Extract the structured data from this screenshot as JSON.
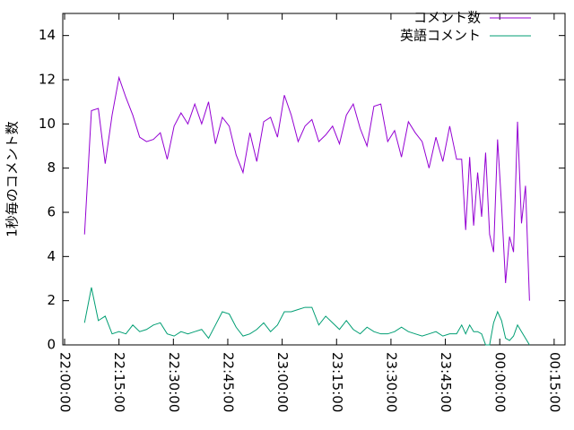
{
  "chart_data": {
    "type": "line",
    "y_label": "1秒毎のコメント数",
    "legend": "top-right",
    "xlim": [
      -0.5,
      138
    ],
    "ylim": [
      0,
      15
    ],
    "xticks": [
      {
        "value": 0,
        "label": "22:00:00"
      },
      {
        "value": 15,
        "label": "22:15:00"
      },
      {
        "value": 30,
        "label": "22:30:00"
      },
      {
        "value": 45,
        "label": "22:45:00"
      },
      {
        "value": 60,
        "label": "23:00:00"
      },
      {
        "value": 75,
        "label": "23:15:00"
      },
      {
        "value": 90,
        "label": "23:30:00"
      },
      {
        "value": 105,
        "label": "23:45:00"
      },
      {
        "value": 120,
        "label": "00:00:00"
      },
      {
        "value": 135,
        "label": "00:15:00"
      }
    ],
    "yticks": [
      0,
      2,
      4,
      6,
      8,
      10,
      12,
      14
    ],
    "x": [
      5.5,
      7.4,
      9.3,
      11.2,
      13.1,
      15,
      16.9,
      18.8,
      20.7,
      22.6,
      24.5,
      26.4,
      28.3,
      30.2,
      32.1,
      34,
      35.9,
      37.8,
      39.7,
      41.6,
      43.5,
      45.4,
      47.3,
      49.2,
      51.1,
      53,
      54.9,
      56.8,
      58.7,
      60.6,
      62.5,
      64.4,
      66.3,
      68.2,
      70.1,
      72,
      73.9,
      75.8,
      77.7,
      79.6,
      81.5,
      83.4,
      85.3,
      87.2,
      89.1,
      91,
      92.9,
      94.8,
      96.7,
      98.6,
      100.5,
      102.4,
      104.3,
      106.2,
      108.1,
      109.5,
      110.6,
      111.7,
      112.8,
      113.9,
      115,
      116.1,
      117.2,
      118.3,
      119.4,
      120.5,
      121.6,
      122.7,
      123.8,
      124.9,
      126,
      127.1,
      128.2
    ],
    "series": [
      {
        "name": "コメント数",
        "color": "#9400d3",
        "values": [
          5.0,
          10.6,
          10.7,
          8.2,
          10.4,
          12.1,
          11.2,
          10.4,
          9.4,
          9.2,
          9.3,
          9.6,
          8.4,
          9.9,
          10.5,
          10.0,
          10.9,
          10.0,
          11.0,
          9.1,
          10.3,
          9.9,
          8.6,
          7.8,
          9.6,
          8.3,
          10.1,
          10.3,
          9.4,
          11.3,
          10.4,
          9.2,
          9.9,
          10.2,
          9.2,
          9.5,
          9.9,
          9.1,
          10.4,
          10.9,
          9.8,
          9.0,
          10.8,
          10.9,
          9.2,
          9.7,
          8.5,
          10.1,
          9.6,
          9.2,
          8.0,
          9.4,
          8.3,
          9.9,
          8.4,
          8.4,
          5.2,
          8.5,
          5.4,
          7.8,
          5.8,
          8.7,
          5.0,
          4.2,
          9.3,
          6.3,
          2.8,
          4.9,
          4.2,
          10.1,
          5.5,
          7.2,
          2.0
        ]
      },
      {
        "name": "英語コメント",
        "color": "#009e73",
        "values": [
          1.0,
          2.6,
          1.1,
          1.3,
          0.5,
          0.6,
          0.5,
          0.9,
          0.6,
          0.7,
          0.9,
          1.0,
          0.5,
          0.4,
          0.6,
          0.5,
          0.6,
          0.7,
          0.3,
          0.9,
          1.5,
          1.4,
          0.8,
          0.4,
          0.5,
          0.7,
          1.0,
          0.6,
          0.9,
          1.5,
          1.5,
          1.6,
          1.7,
          1.7,
          0.9,
          1.3,
          1.0,
          0.7,
          1.1,
          0.7,
          0.5,
          0.8,
          0.6,
          0.5,
          0.5,
          0.6,
          0.8,
          0.6,
          0.5,
          0.4,
          0.5,
          0.6,
          0.4,
          0.5,
          0.5,
          0.9,
          0.5,
          0.9,
          0.6,
          0.6,
          0.5,
          0.0,
          0.0,
          1.0,
          1.5,
          1.1,
          0.3,
          0.2,
          0.4,
          0.9,
          0.6,
          0.3,
          0.0
        ]
      }
    ]
  }
}
